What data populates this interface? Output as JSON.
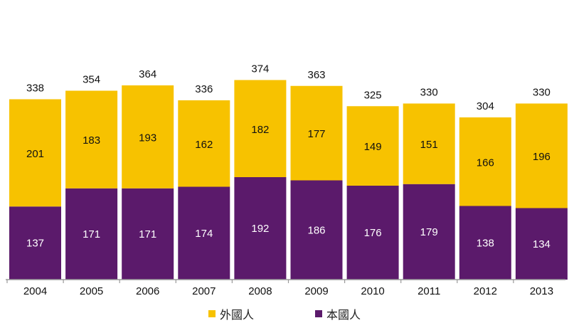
{
  "chart_data": {
    "type": "bar",
    "stacked": true,
    "categories": [
      "2004",
      "2005",
      "2006",
      "2007",
      "2008",
      "2009",
      "2010",
      "2011",
      "2012",
      "2013"
    ],
    "series": [
      {
        "name": "本國人",
        "color": "#5b1a6b",
        "values": [
          137,
          171,
          171,
          174,
          192,
          186,
          176,
          179,
          138,
          134
        ]
      },
      {
        "name": "外國人",
        "color": "#f7c200",
        "values": [
          201,
          183,
          193,
          162,
          182,
          177,
          149,
          151,
          166,
          196
        ]
      }
    ],
    "totals": [
      338,
      354,
      364,
      336,
      374,
      363,
      325,
      330,
      304,
      330
    ],
    "ylim": [
      0,
      390
    ],
    "grid": false,
    "legend_position": "bottom"
  },
  "legend": {
    "items": [
      {
        "label": "外國人",
        "color": "#f7c200"
      },
      {
        "label": "本國人",
        "color": "#5b1a6b"
      }
    ]
  }
}
